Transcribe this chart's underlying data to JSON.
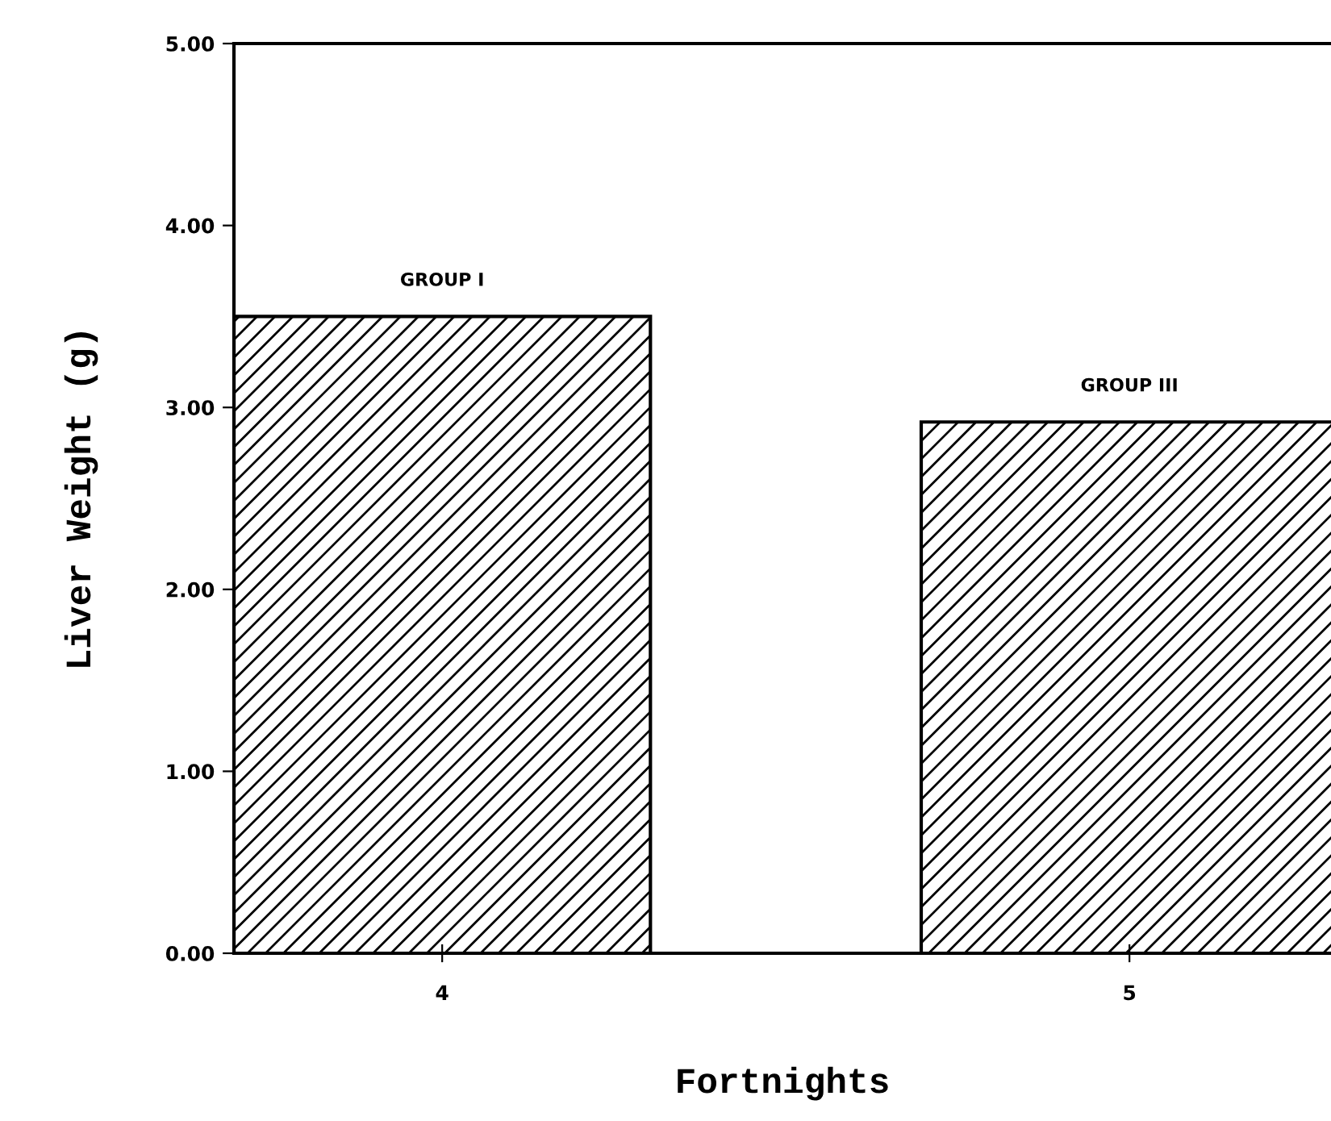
{
  "chart_data": {
    "type": "bar",
    "xlabel": "Fortnights",
    "ylabel": "Liver Weight (g)",
    "categories": [
      "4",
      "5"
    ],
    "values": [
      3.5,
      2.92
    ],
    "color": "#000000",
    "ylim": [
      0,
      5
    ],
    "yticks": [
      {
        "value": 0,
        "label": "0.00"
      },
      {
        "value": 1,
        "label": "1.00"
      },
      {
        "value": 2,
        "label": "2.00"
      },
      {
        "value": 3,
        "label": "3.00"
      },
      {
        "value": 4,
        "label": "4.00"
      },
      {
        "value": 5,
        "label": "5.00"
      }
    ],
    "annotations": [
      {
        "text": "GROUP I",
        "x": "4",
        "y": 3.5
      },
      {
        "text": "GROUP III",
        "x": "5",
        "y": 2.92
      }
    ],
    "grid": false
  }
}
